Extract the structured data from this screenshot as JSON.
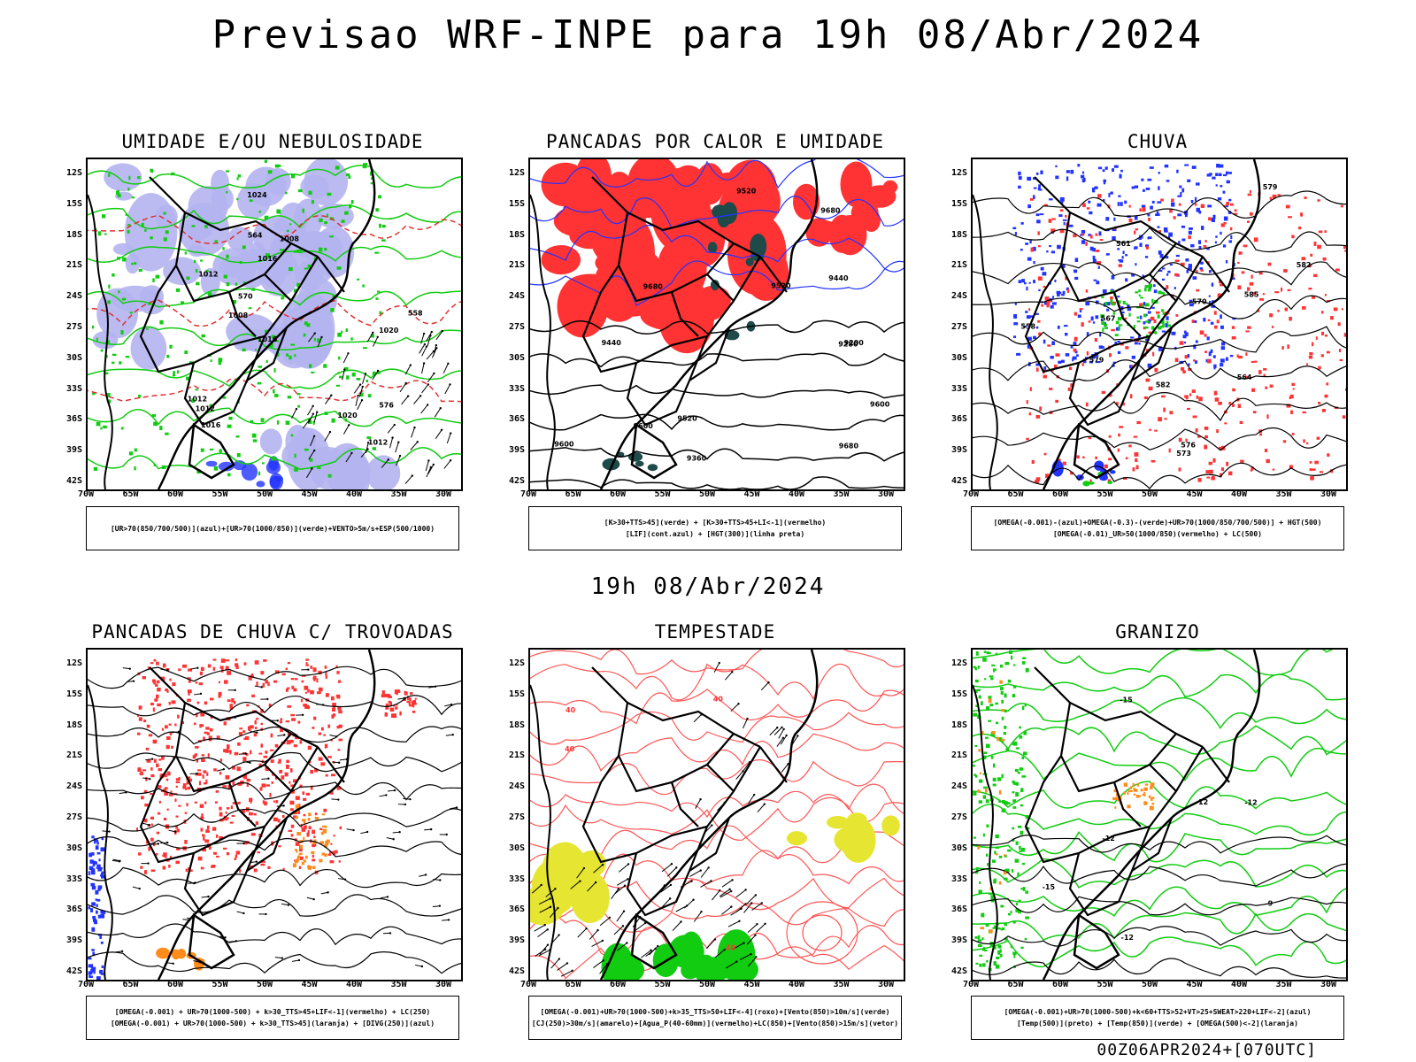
{
  "title": "Previsao WRF-INPE  para 19h 08/Abr/2024",
  "subtitle": "19h 08/Abr/2024",
  "footer": "00Z06APR2024+[070UTC]",
  "lat_labels": [
    "12S",
    "15S",
    "18S",
    "21S",
    "24S",
    "27S",
    "30S",
    "33S",
    "36S",
    "39S",
    "42S"
  ],
  "lon_labels": [
    "70W",
    "65W",
    "60W",
    "55W",
    "50W",
    "45W",
    "40W",
    "35W",
    "30W"
  ],
  "colors": {
    "blue": "#2233ff",
    "green": "#11cc11",
    "red": "#ff3333",
    "lavender": "#b4b4f0",
    "darkgreen": "#1e4a4a",
    "yellow": "#e6e632",
    "orange": "#ff8c1a"
  },
  "panels": [
    {
      "title": "UMIDADE E/OU NEBULOSIDADE",
      "legend": [
        "[UR>70(850/700/500)](azul)+[UR>70(1000/850)](verde)+VENTO>5m/s+ESP(500/1000)"
      ],
      "contour_labels": [
        "1008",
        "1012",
        "1012",
        "1012",
        "1016",
        "1016",
        "1020",
        "1024",
        "576",
        "570",
        "564",
        "558",
        "1008",
        "1012",
        "1016",
        "1020"
      ]
    },
    {
      "title": "PANCADAS POR CALOR E UMIDADE",
      "legend": [
        "[K>30+TTS>45](verde) + [K>30+TTS>45+LI<-1](vermelho)",
        "[LIF](cont.azul) + [HGT(300)](linha preta)"
      ],
      "contour_labels": [
        "9680",
        "9680",
        "9600",
        "9600",
        "9520",
        "9520",
        "9440",
        "9440",
        "9360",
        "9280",
        "9200",
        "9680",
        "9600",
        "9520"
      ]
    },
    {
      "title": "CHUVA",
      "legend": [
        "[OMEGA(-0.001)-(azul)+OMEGA(-0.3)-(verde)+UR>70(1000/850/700/500)] + HGT(500)",
        "[OMEGA(-0.01)_UR>50(1000/850)(vermelho) + LC(500)"
      ],
      "contour_labels": [
        "585",
        "582",
        "579",
        "576",
        "573",
        "570",
        "567",
        "564",
        "561",
        "558",
        "582",
        "579"
      ]
    },
    {
      "title": "PANCADAS DE CHUVA C/ TROVOADAS",
      "legend": [
        "[OMEGA(-0.001) + UR>70(1000-500) + k>30_TTS>45+LIF<-1](vermelho) + LC(250)",
        "[OMEGA(-0.001) + UR>70(1000-500) + k>30_TTS>45](laranja) + [DIVG(250)](azul)"
      ],
      "contour_labels": []
    },
    {
      "title": "TEMPESTADE",
      "legend": [
        "[OMEGA(-0.001)+UR>70(1000-500)+k>35_TTS>50+LIF<-4](roxo)+[Vento(850)>10m/s](verde)",
        "[CJ(250)>30m/s](amarelo)+[Agua_P(40-60mm)](vermelho)+LC(850)+[Vento(850)>15m/s](vetor)"
      ],
      "contour_labels": [
        "40",
        "40",
        "40",
        "40"
      ]
    },
    {
      "title": "GRANIZO",
      "legend": [
        "[OMEGA(-0.001)+UR>70(1000-500)+k<60+TTS>52+VT>25+SWEAT>220+LIF<-2](azul)",
        "[Temp(500)](preto) + [Temp(850)](verde) + [OMEGA(500)<-2](laranja)"
      ],
      "contour_labels": [
        "-12",
        "-12",
        "-15",
        "-12",
        "-12",
        "-9",
        "-15"
      ]
    }
  ]
}
